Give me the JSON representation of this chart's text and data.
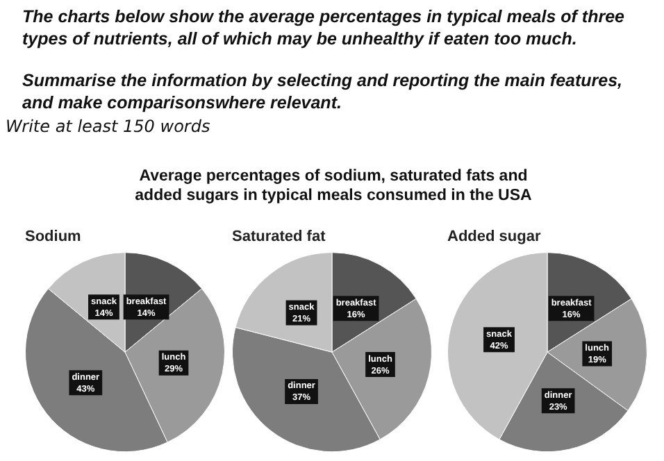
{
  "chart_data": [
    {
      "type": "pie",
      "title": "Sodium",
      "categories": [
        "breakfast",
        "lunch",
        "dinner",
        "snack"
      ],
      "values": [
        14,
        29,
        43,
        14
      ],
      "value_labels": [
        "14%",
        "29%",
        "43%",
        "14%"
      ],
      "colors": [
        "#555555",
        "#9a9a9a",
        "#7d7d7d",
        "#c2c2c2"
      ],
      "legend": false,
      "annotations": [
        "The charts below show the average percentages in typical meals of three types of nutrients, all of which may be unhealthy if eaten too much.",
        "Summarise the information by selecting and reporting the main features, and make comparisonswhere relevant.",
        "Write at least 150 words",
        "Average percentages of sodium, saturated fats and added sugars in typical meals consumed in the USA"
      ]
    },
    {
      "type": "pie",
      "title": "Saturated fat",
      "categories": [
        "breakfast",
        "lunch",
        "dinner",
        "snack"
      ],
      "values": [
        16,
        26,
        37,
        21
      ],
      "value_labels": [
        "16%",
        "26%",
        "37%",
        "21%"
      ],
      "colors": [
        "#555555",
        "#9a9a9a",
        "#7d7d7d",
        "#c2c2c2"
      ],
      "legend": false
    },
    {
      "type": "pie",
      "title": "Added sugar",
      "categories": [
        "breakfast",
        "lunch",
        "dinner",
        "snack"
      ],
      "values": [
        16,
        19,
        23,
        42
      ],
      "value_labels": [
        "16%",
        "19%",
        "23%",
        "42%"
      ],
      "colors": [
        "#555555",
        "#9a9a9a",
        "#7d7d7d",
        "#c2c2c2"
      ],
      "legend": false
    }
  ]
}
